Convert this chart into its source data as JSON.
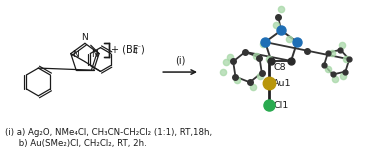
{
  "bg_color": "#ffffff",
  "caption_line1": "(i) a) Ag₂O, NMe₄Cl, CH₃CN-CH₂Cl₂ (1:1), RT,18h,",
  "caption_line2": "     b) Au(SMe₂)Cl, CH₂Cl₂, RT, 2h.",
  "arrow_label": "(i)",
  "bf4_text": "+ (BF",
  "bf4_sub": "4",
  "bf4_super": "⁻",
  "bf4_close": ")",
  "crystal_labels": [
    "C8",
    "Au1",
    "Cl1"
  ],
  "caption_fontsize": 6.2,
  "label_fontsize": 6.8,
  "arrow_fontsize": 7.0,
  "dark_color": "#1a1a1a",
  "blue_color": "#1e6eb5",
  "gold_color": "#b8960c",
  "green_color": "#2aaa50",
  "ghost_color": "#a8d8a8"
}
